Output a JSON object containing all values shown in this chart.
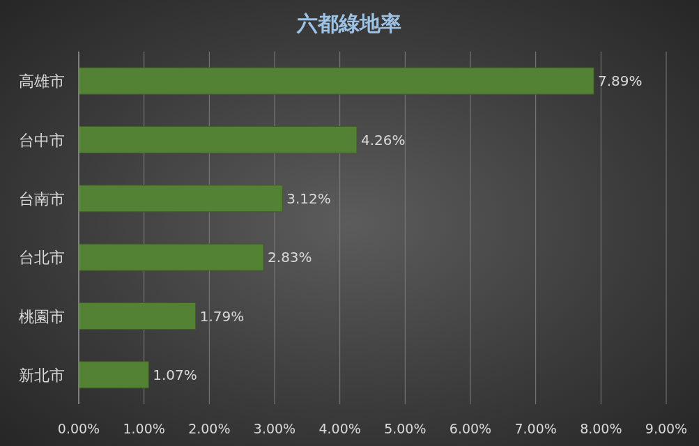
{
  "chart_data": {
    "type": "bar",
    "orientation": "horizontal",
    "title": "六都綠地率",
    "categories": [
      "高雄市",
      "台中市",
      "台南市",
      "台北市",
      "桃園市",
      "新北市"
    ],
    "values": [
      7.89,
      4.26,
      3.12,
      2.83,
      1.79,
      1.07
    ],
    "value_labels": [
      "7.89%",
      "4.26%",
      "3.12%",
      "2.83%",
      "1.79%",
      "1.07%"
    ],
    "color": "#548235",
    "xlim": [
      0,
      9
    ],
    "xticks": [
      {
        "value": 0,
        "label": "0.00%"
      },
      {
        "value": 1,
        "label": "1.00%"
      },
      {
        "value": 2,
        "label": "2.00%"
      },
      {
        "value": 3,
        "label": "3.00%"
      },
      {
        "value": 4,
        "label": "4.00%"
      },
      {
        "value": 5,
        "label": "5.00%"
      },
      {
        "value": 6,
        "label": "6.00%"
      },
      {
        "value": 7,
        "label": "7.00%"
      },
      {
        "value": 8,
        "label": "8.00%"
      },
      {
        "value": 9,
        "label": "9.00%"
      }
    ],
    "grid": "x"
  }
}
